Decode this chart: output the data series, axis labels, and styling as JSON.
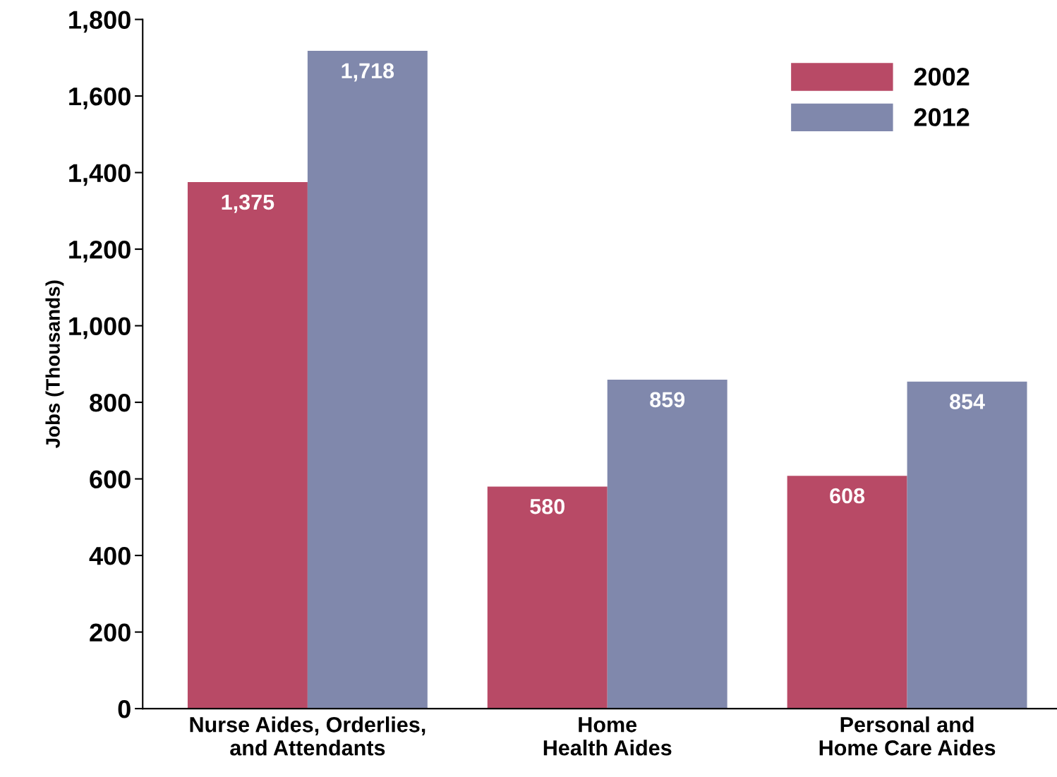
{
  "chart_data": {
    "type": "bar",
    "ylabel": "Jobs (Thousands)",
    "categories": [
      "Nurse Aides, Orderlies,\nand Attendants",
      "Home\nHealth Aides",
      "Personal and\nHome Care Aides"
    ],
    "series": [
      {
        "name": "2002",
        "color": "#b84a66",
        "values": [
          1375,
          580,
          608
        ],
        "value_labels": [
          "1,375",
          "580",
          "608"
        ]
      },
      {
        "name": "2012",
        "color": "#8088ac",
        "values": [
          1718,
          859,
          854
        ],
        "value_labels": [
          "1,718",
          "859",
          "854"
        ]
      }
    ],
    "ylim": [
      0,
      1800
    ],
    "yticks": [
      0,
      200,
      400,
      600,
      800,
      {
        "value": 1000,
        "label": "1,000"
      },
      {
        "value": 1200,
        "label": "1,200"
      },
      {
        "value": 1400,
        "label": "1,400"
      },
      {
        "value": 1600,
        "label": "1,600"
      },
      {
        "value": 1800,
        "label": "1,800"
      }
    ],
    "grid": false,
    "legend": "top right"
  }
}
